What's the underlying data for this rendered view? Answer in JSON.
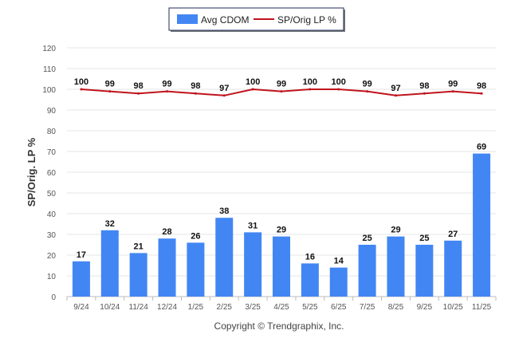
{
  "chart_data": {
    "type": "bar+line",
    "title": "",
    "xlabel": "",
    "ylabel": "SP/Orig. LP %",
    "ylim": [
      0,
      120
    ],
    "yticks": [
      0,
      10,
      20,
      30,
      40,
      50,
      60,
      70,
      80,
      90,
      100,
      110,
      120
    ],
    "ytick_labels": [
      "0",
      "10",
      "20",
      "30",
      "40",
      "50",
      "60",
      "70",
      "80",
      "90",
      "100",
      "110",
      "120"
    ],
    "grid": true,
    "legend_position": "top-center",
    "categories": [
      "9/24",
      "10/24",
      "11/24",
      "12/24",
      "1/25",
      "2/25",
      "3/25",
      "4/25",
      "5/25",
      "6/25",
      "7/25",
      "8/25",
      "9/25",
      "10/25",
      "11/25"
    ],
    "series": [
      {
        "name": "Avg CDOM",
        "type": "bar",
        "color": "#4286f4",
        "values": [
          17,
          32,
          21,
          28,
          26,
          38,
          31,
          29,
          16,
          14,
          25,
          29,
          25,
          27,
          69
        ],
        "labels": [
          "17",
          "32",
          "21",
          "28",
          "26",
          "38",
          "31",
          "29",
          "16",
          "14",
          "25",
          "29",
          "25",
          "27",
          "69"
        ]
      },
      {
        "name": "SP/Orig LP %",
        "type": "line",
        "color": "#c0141c",
        "values": [
          100,
          99,
          98,
          99,
          98,
          97,
          100,
          99,
          100,
          100,
          99,
          97,
          98,
          99,
          98
        ],
        "labels": [
          "100",
          "99",
          "98",
          "99",
          "98",
          "97",
          "100",
          "99",
          "100",
          "100",
          "99",
          "97",
          "98",
          "99",
          "98"
        ]
      }
    ],
    "footer": "Copyright © Trendgraphix, Inc."
  }
}
